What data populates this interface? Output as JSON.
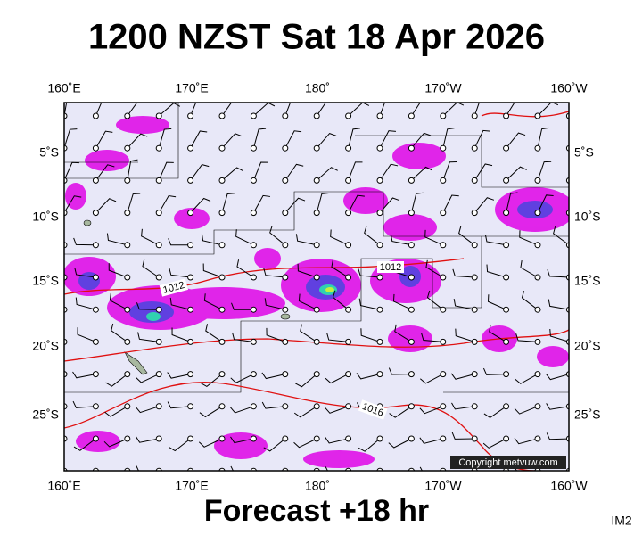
{
  "header": {
    "title": "1200 NZST Sat 18 Apr 2026"
  },
  "map": {
    "lon_labels": [
      "160˚E",
      "170˚E",
      "180˚",
      "170˚W",
      "160˚W"
    ],
    "lat_labels": [
      "5˚S",
      "10˚S",
      "15˚S",
      "20˚S",
      "25˚S"
    ],
    "isobar_labels": [
      "1012",
      "1012",
      "1016"
    ],
    "copyright": "Copyright metvuw.com"
  },
  "footer": {
    "forecast": "Forecast +18 hr",
    "code": "IM2"
  }
}
